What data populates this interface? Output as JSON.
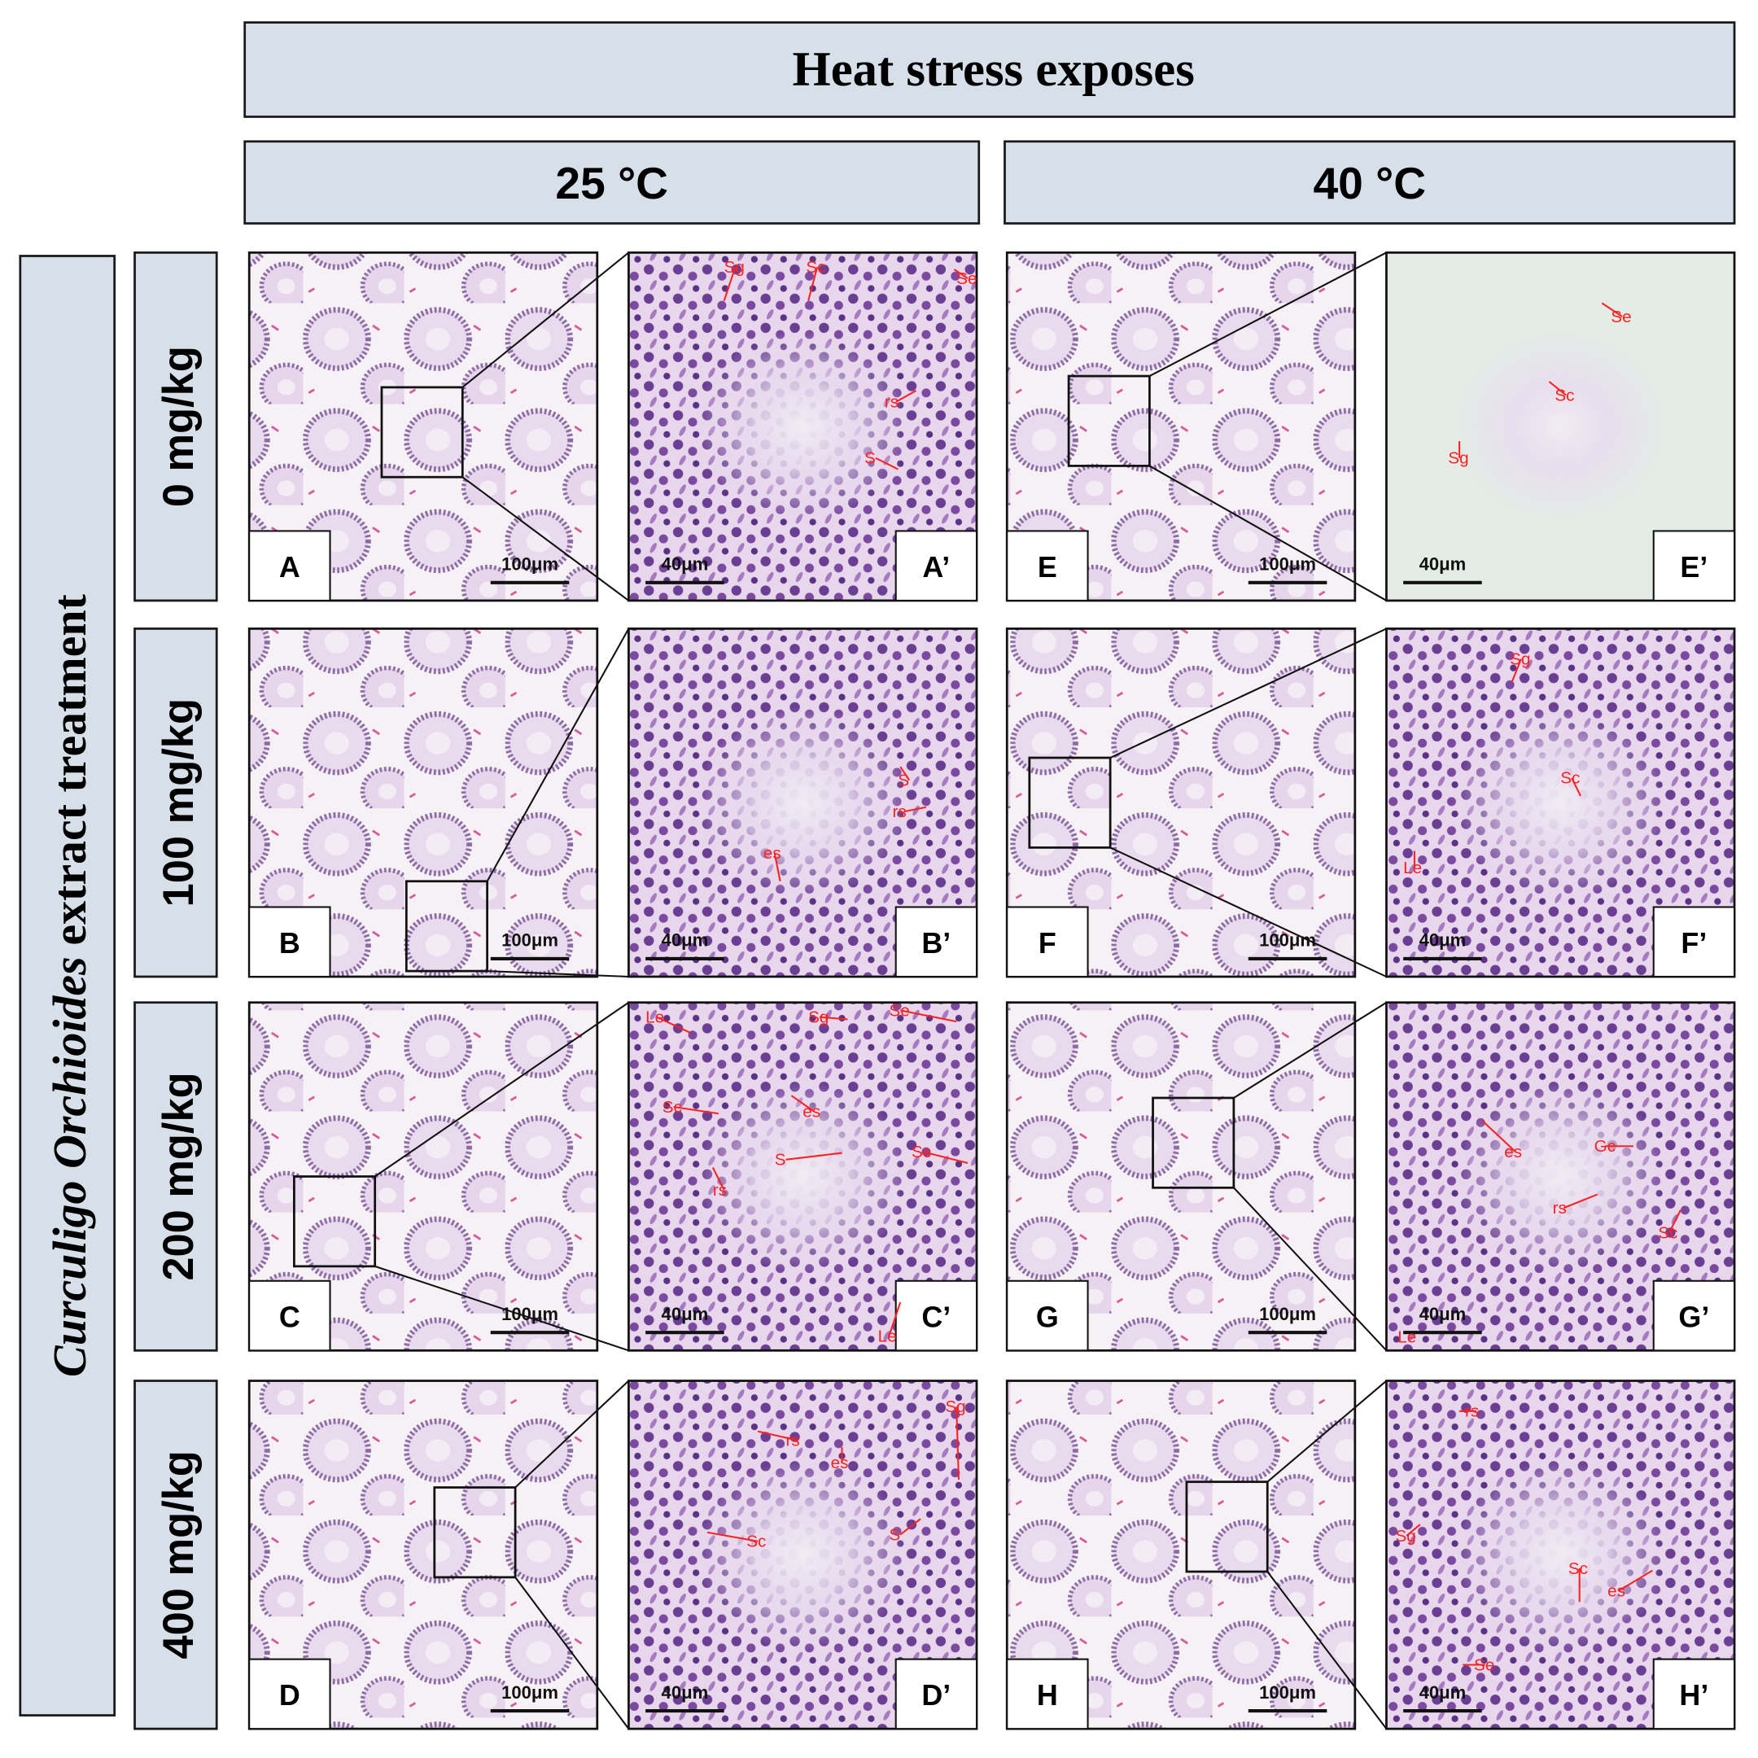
{
  "header": {
    "title": "Heat stress exposes"
  },
  "columns": [
    "25 °C",
    "40 °C"
  ],
  "side_label": {
    "italic": "Curculigo Orchioides",
    "rest": "extract treatment"
  },
  "rows": [
    {
      "label": "0 mg/kg",
      "panels": [
        {
          "letter": "A",
          "scale": "100μm"
        },
        {
          "letter": "A’",
          "scale": "40μm",
          "annotations": [
            "Sg",
            "Sc",
            "Se",
            "rs",
            "S"
          ]
        },
        {
          "letter": "E",
          "scale": "100μm"
        },
        {
          "letter": "E’",
          "scale": "40μm",
          "annotations": [
            "Se",
            "Sc",
            "Sg"
          ]
        }
      ]
    },
    {
      "label": "100 mg/kg",
      "panels": [
        {
          "letter": "B",
          "scale": "100μm"
        },
        {
          "letter": "B’",
          "scale": "40μm",
          "annotations": [
            "S",
            "rs",
            "es"
          ]
        },
        {
          "letter": "F",
          "scale": "100μm"
        },
        {
          "letter": "F’",
          "scale": "40μm",
          "annotations": [
            "Sg",
            "Sc",
            "Le"
          ]
        }
      ]
    },
    {
      "label": "200 mg/kg",
      "panels": [
        {
          "letter": "C",
          "scale": "100μm"
        },
        {
          "letter": "C’",
          "scale": "40μm",
          "annotations": [
            "Le",
            "Sg",
            "Se",
            "Sc",
            "es",
            "S",
            "Sc",
            "rs",
            "Le"
          ]
        },
        {
          "letter": "G",
          "scale": "100μm"
        },
        {
          "letter": "G’",
          "scale": "40μm",
          "annotations": [
            "es",
            "Gc",
            "rs",
            "Sc",
            "Le"
          ]
        }
      ]
    },
    {
      "label": "400 mg/kg",
      "panels": [
        {
          "letter": "D",
          "scale": "100μm"
        },
        {
          "letter": "D’",
          "scale": "40μm",
          "annotations": [
            "rs",
            "es",
            "Sg",
            "Sc",
            "S"
          ]
        },
        {
          "letter": "H",
          "scale": "100μm"
        },
        {
          "letter": "H’",
          "scale": "40μm",
          "annotations": [
            "rs",
            "Sg",
            "Sc",
            "es",
            "Se"
          ]
        }
      ]
    }
  ]
}
